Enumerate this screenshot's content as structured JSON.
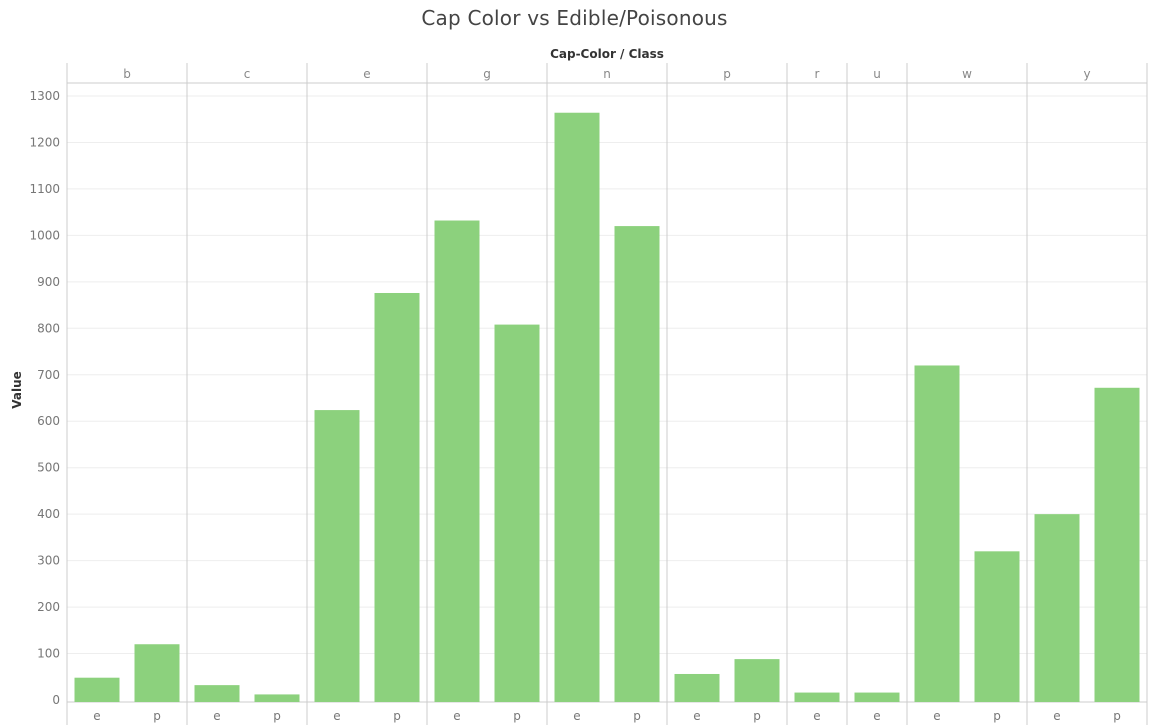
{
  "chart_data": {
    "type": "bar",
    "title": "Cap Color vs Edible/Poisonous",
    "column_header": "Cap-Color  /  Class",
    "ylabel": "Value",
    "ylim": [
      0,
      1300
    ],
    "y_ticks": [
      0,
      100,
      200,
      300,
      400,
      500,
      600,
      700,
      800,
      900,
      1000,
      1100,
      1200,
      1300
    ],
    "grid": true,
    "bar_color": "#8cd17d",
    "groups": [
      {
        "name": "b",
        "bars": [
          {
            "class": "e",
            "value": 48
          },
          {
            "class": "p",
            "value": 120
          }
        ]
      },
      {
        "name": "c",
        "bars": [
          {
            "class": "e",
            "value": 32
          },
          {
            "class": "p",
            "value": 12
          }
        ]
      },
      {
        "name": "e",
        "bars": [
          {
            "class": "e",
            "value": 624
          },
          {
            "class": "p",
            "value": 876
          }
        ]
      },
      {
        "name": "g",
        "bars": [
          {
            "class": "e",
            "value": 1032
          },
          {
            "class": "p",
            "value": 808
          }
        ]
      },
      {
        "name": "n",
        "bars": [
          {
            "class": "e",
            "value": 1264
          },
          {
            "class": "p",
            "value": 1020
          }
        ]
      },
      {
        "name": "p",
        "bars": [
          {
            "class": "e",
            "value": 56
          },
          {
            "class": "p",
            "value": 88
          }
        ]
      },
      {
        "name": "r",
        "bars": [
          {
            "class": "e",
            "value": 16
          }
        ]
      },
      {
        "name": "u",
        "bars": [
          {
            "class": "e",
            "value": 16
          }
        ]
      },
      {
        "name": "w",
        "bars": [
          {
            "class": "e",
            "value": 720
          },
          {
            "class": "p",
            "value": 320
          }
        ]
      },
      {
        "name": "y",
        "bars": [
          {
            "class": "e",
            "value": 400
          },
          {
            "class": "p",
            "value": 672
          }
        ]
      }
    ]
  }
}
